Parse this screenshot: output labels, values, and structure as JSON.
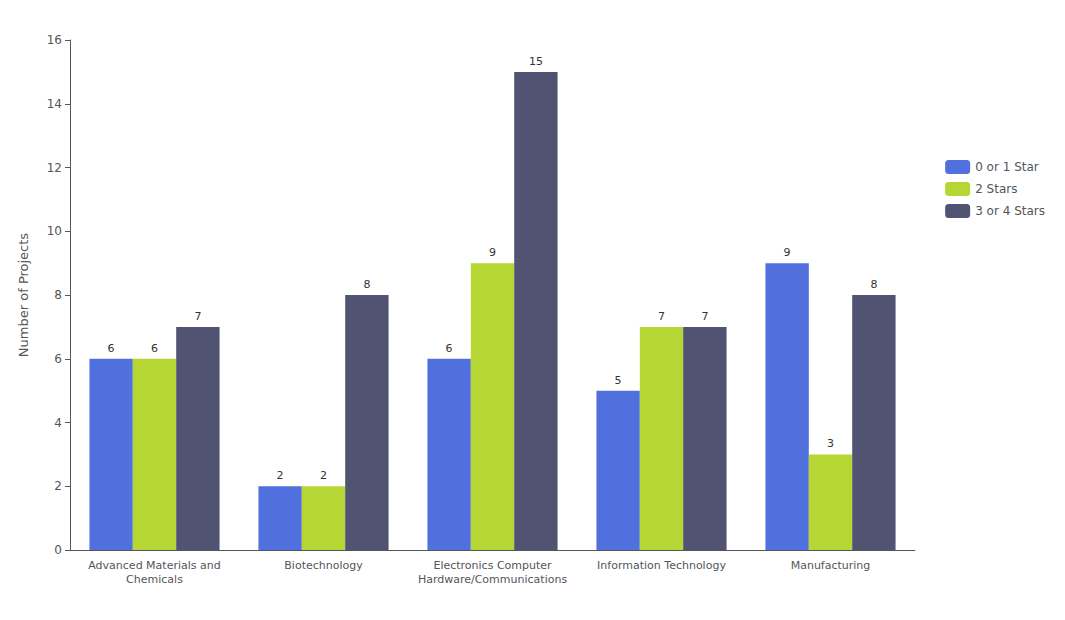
{
  "chart_data": {
    "type": "bar",
    "categories": [
      "Advanced Materials and\nChemicals",
      "Biotechnology",
      "Electronics Computer\nHardware/Communications",
      "Information Technology",
      "Manufacturing"
    ],
    "series": [
      {
        "name": "0 or 1 Star",
        "values": [
          6,
          2,
          6,
          5,
          9
        ]
      },
      {
        "name": "2 Stars",
        "values": [
          6,
          2,
          9,
          7,
          3
        ]
      },
      {
        "name": "3 or 4 Stars",
        "values": [
          7,
          8,
          15,
          7,
          8
        ]
      }
    ],
    "ylabel": "Number of Projects",
    "ylim": [
      0,
      16
    ],
    "yticks": [
      0,
      2,
      4,
      6,
      8,
      10,
      12,
      14,
      16
    ],
    "grid": false,
    "legend": "right",
    "data_labels": true
  }
}
